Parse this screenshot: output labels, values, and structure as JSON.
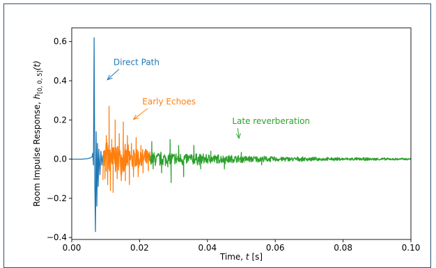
{
  "chart_data": {
    "type": "line",
    "xlabel_prefix": "Time, ",
    "xlabel_var": "t",
    "xlabel_suffix": " [s]",
    "ylabel_prefix": "Room Impulse Response, ",
    "ylabel_var": "h",
    "ylabel_sub": "[0, 0, 5]",
    "ylabel_arg": "(t)",
    "xlim": [
      0.0,
      0.1
    ],
    "ylim": [
      -0.41,
      0.67
    ],
    "grid": false,
    "x_ticks": [
      0.0,
      0.02,
      0.04,
      0.06,
      0.08,
      0.1
    ],
    "x_tick_labels": [
      "0.00",
      "0.02",
      "0.04",
      "0.06",
      "0.08",
      "0.10"
    ],
    "y_ticks": [
      -0.4,
      -0.2,
      0.0,
      0.2,
      0.4,
      0.6
    ],
    "y_tick_labels": [
      "−0.4",
      "−0.2",
      "0.0",
      "0.2",
      "0.4",
      "0.6"
    ],
    "series": [
      {
        "color": "#1f77b4",
        "x_range": [
          0.0,
          0.0092
        ],
        "points": [
          [
            0.0,
            0.0
          ],
          [
            0.003,
            0.0
          ],
          [
            0.0045,
            0.002
          ],
          [
            0.0055,
            0.006
          ],
          [
            0.006,
            0.012
          ],
          [
            0.0062,
            0.03
          ],
          [
            0.0064,
            -0.03
          ],
          [
            0.0066,
            0.62
          ],
          [
            0.0068,
            -0.13
          ],
          [
            0.007,
            -0.37
          ],
          [
            0.0072,
            0.14
          ],
          [
            0.0074,
            -0.24
          ],
          [
            0.0076,
            0.08
          ],
          [
            0.0078,
            -0.14
          ],
          [
            0.008,
            0.05
          ],
          [
            0.0083,
            -0.08
          ],
          [
            0.0086,
            0.04
          ],
          [
            0.0089,
            -0.03
          ],
          [
            0.0092,
            0.02
          ]
        ]
      },
      {
        "color": "#ff7f0e",
        "x_range": [
          0.0092,
          0.0232
        ],
        "peak_points": [
          [
            0.0098,
            -0.1
          ],
          [
            0.0102,
            0.12
          ],
          [
            0.0106,
            -0.13
          ],
          [
            0.011,
            0.27
          ],
          [
            0.0114,
            -0.16
          ],
          [
            0.0118,
            0.1
          ],
          [
            0.0122,
            -0.17
          ],
          [
            0.0128,
            0.2
          ],
          [
            0.0134,
            -0.1
          ],
          [
            0.014,
            0.13
          ],
          [
            0.0146,
            -0.11
          ],
          [
            0.0152,
            0.19
          ],
          [
            0.0158,
            -0.11
          ],
          [
            0.0164,
            0.12
          ],
          [
            0.017,
            -0.13
          ],
          [
            0.0176,
            0.08
          ],
          [
            0.0182,
            -0.09
          ],
          [
            0.019,
            0.11
          ],
          [
            0.0196,
            -0.09
          ],
          [
            0.0204,
            0.07
          ],
          [
            0.021,
            -0.07
          ],
          [
            0.0218,
            0.05
          ],
          [
            0.0226,
            -0.06
          ]
        ],
        "envelope": [
          [
            0.0092,
            0.11
          ],
          [
            0.013,
            0.09
          ],
          [
            0.018,
            0.07
          ],
          [
            0.0232,
            0.05
          ]
        ]
      },
      {
        "color": "#2ca02c",
        "x_range": [
          0.0232,
          0.1
        ],
        "peak_points": [
          [
            0.0236,
            0.09
          ],
          [
            0.024,
            -0.05
          ],
          [
            0.0265,
            -0.07
          ],
          [
            0.029,
            0.1
          ],
          [
            0.0293,
            -0.12
          ],
          [
            0.0315,
            0.07
          ],
          [
            0.033,
            -0.09
          ],
          [
            0.036,
            0.07
          ],
          [
            0.038,
            -0.05
          ],
          [
            0.041,
            0.04
          ],
          [
            0.045,
            -0.05
          ],
          [
            0.05,
            0.035
          ],
          [
            0.056,
            -0.03
          ]
        ],
        "envelope": [
          [
            0.0232,
            0.045
          ],
          [
            0.03,
            0.042
          ],
          [
            0.04,
            0.03
          ],
          [
            0.05,
            0.022
          ],
          [
            0.06,
            0.015
          ],
          [
            0.075,
            0.01
          ],
          [
            0.09,
            0.008
          ],
          [
            0.1,
            0.006
          ]
        ]
      }
    ],
    "annotations": [
      {
        "text": "Direct Path",
        "color": "#1f77b4",
        "text_xy": [
          0.0123,
          0.48
        ],
        "arrow_to": [
          0.0105,
          0.405
        ]
      },
      {
        "text": "Early Echoes",
        "color": "#ff7f0e",
        "text_xy": [
          0.0208,
          0.28
        ],
        "arrow_to": [
          0.0182,
          0.203
        ]
      },
      {
        "text": "Late reverberation",
        "color": "#2ca02c",
        "text_xy": [
          0.0473,
          0.18
        ],
        "arrow_to": [
          0.0493,
          0.106
        ]
      }
    ]
  }
}
